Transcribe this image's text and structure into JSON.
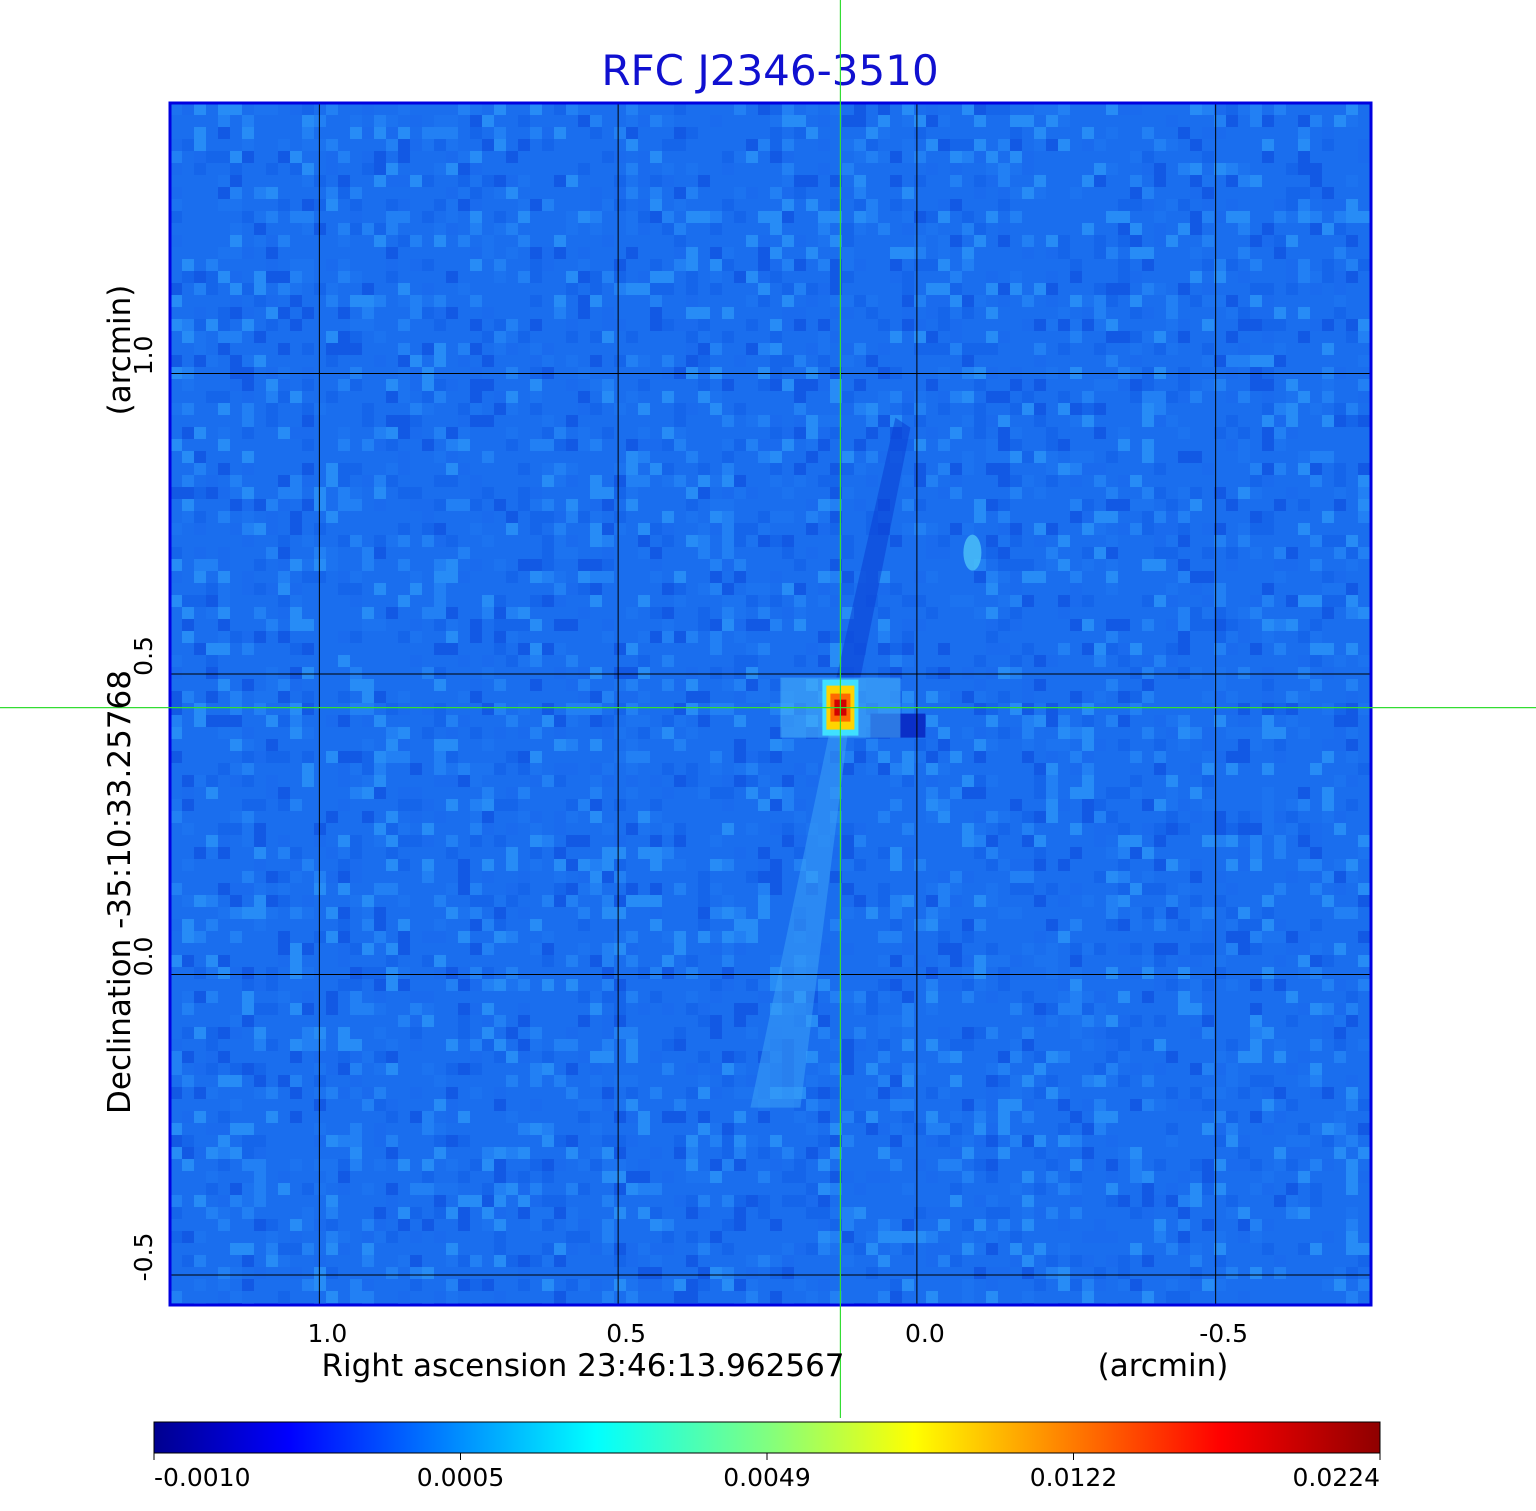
{
  "chart_data": {
    "type": "heatmap",
    "title": "RFC J2346-3510",
    "xlabel": "Right ascension  23:46:13.962567",
    "xunit": "(arcmin)",
    "ylabel": "Declination  -35:10:33.25768",
    "yunit": "(arcmin)",
    "xlim": [
      1.25,
      -0.76
    ],
    "ylim": [
      -0.55,
      1.45
    ],
    "x_ticks": [
      {
        "value": 1.0,
        "label": "1.0"
      },
      {
        "value": 0.5,
        "label": "0.5"
      },
      {
        "value": 0.0,
        "label": "0.0"
      },
      {
        "value": -0.5,
        "label": "-0.5"
      }
    ],
    "y_ticks": [
      {
        "value": 1.0,
        "label": "1.0"
      },
      {
        "value": 0.5,
        "label": "0.5"
      },
      {
        "value": 0.0,
        "label": "0.0"
      },
      {
        "value": -0.5,
        "label": "-0.5"
      }
    ],
    "grid": true,
    "crosshair": {
      "x": 0.128,
      "y": 0.444
    },
    "peak": {
      "x": 0.128,
      "y": 0.444
    },
    "colormap": "jet",
    "colorbar": {
      "ticks": [
        {
          "value": -0.001,
          "label": "-0.0010"
        },
        {
          "value": 0.0005,
          "label": "0.0005"
        },
        {
          "value": 0.0049,
          "label": "0.0049"
        },
        {
          "value": 0.0122,
          "label": "0.0122"
        },
        {
          "value": 0.0224,
          "label": "0.0224"
        }
      ]
    }
  },
  "colors": {
    "title": "#1010d0",
    "frame": "#0000e0",
    "grid": "#000000",
    "crosshair": "#33dd33",
    "background_field": "#1a6eee"
  }
}
